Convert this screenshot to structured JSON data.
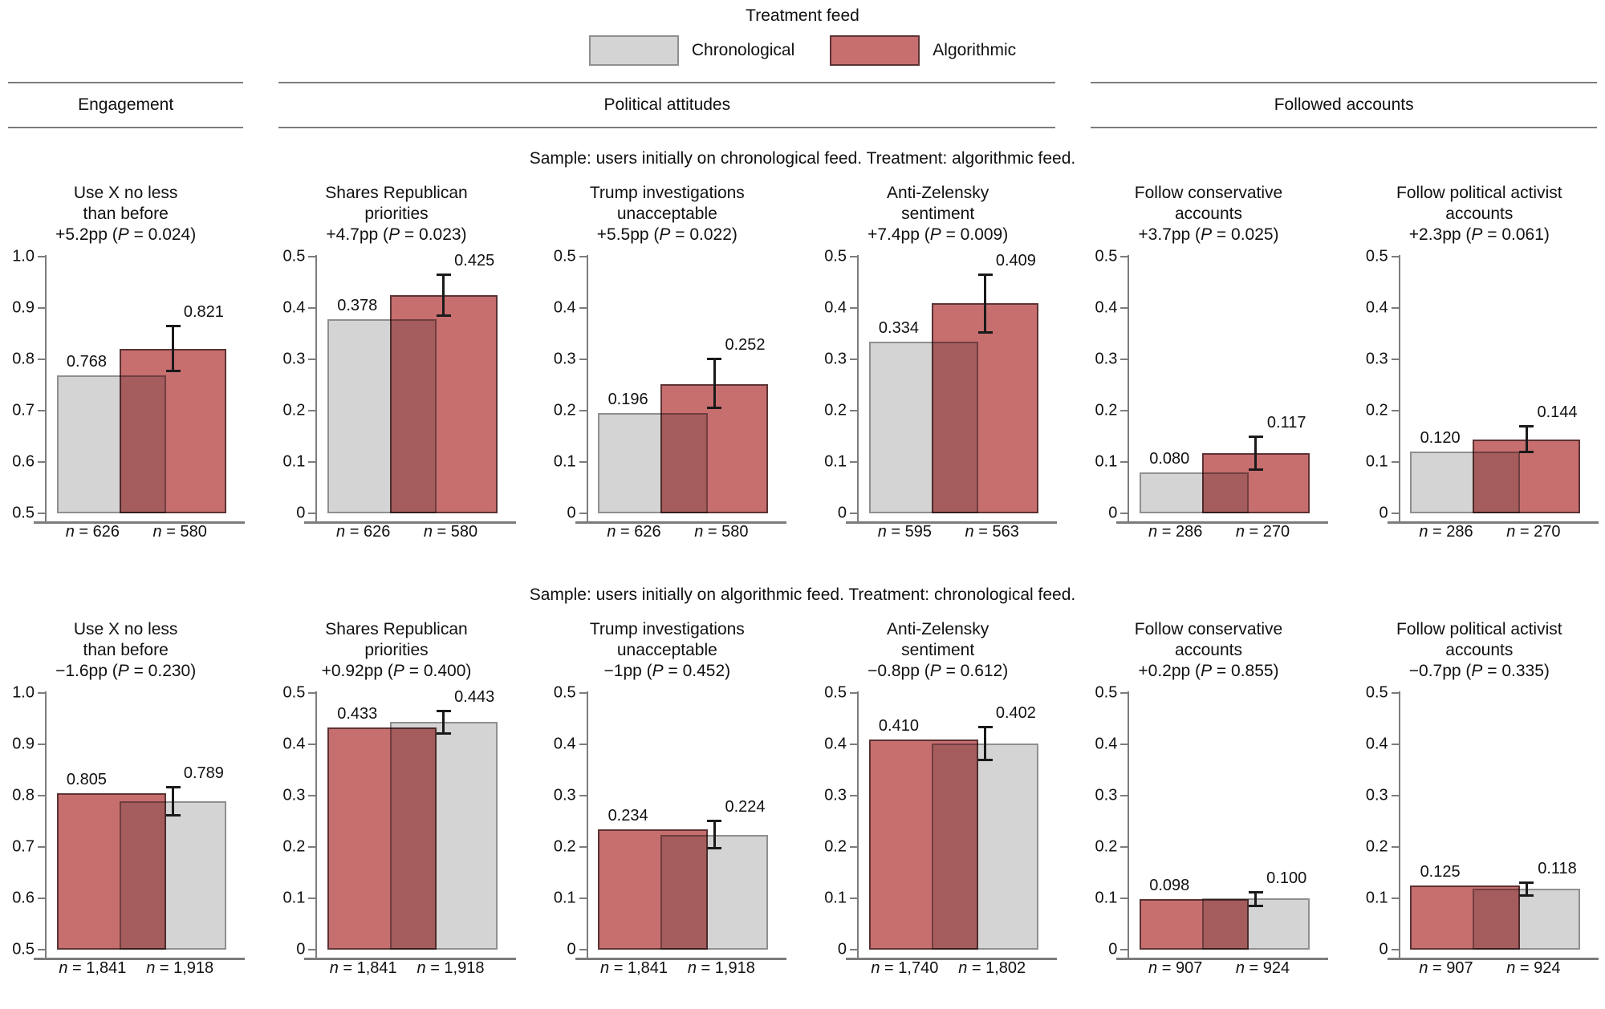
{
  "chart_data": {
    "type": "bar",
    "bar_style": "overlapping-pair-with-error-bar",
    "legend": {
      "title": "Treatment feed",
      "items": [
        {
          "label": "Chronological",
          "fill": "#d4d4d4",
          "border": "#8f8f8f"
        },
        {
          "label": "Algorithmic",
          "fill": "#c76e6f",
          "border": "#5c3334"
        }
      ]
    },
    "group_headers": [
      {
        "label": "Engagement"
      },
      {
        "label": "Political attitudes"
      },
      {
        "label": "Followed accounts"
      }
    ],
    "rows": [
      {
        "subtitle": "Sample: users initially on chronological feed. Treatment: algorithmic feed.",
        "charts": [
          {
            "title": [
              "Use X no less",
              "than before"
            ],
            "effect_label": "+5.2pp (P = 0.024)",
            "ylim": [
              0.5,
              1.0
            ],
            "yticks": [
              "0.5",
              "0.6",
              "0.7",
              "0.8",
              "0.9",
              "1.0"
            ],
            "bars": [
              {
                "series": "Chronological",
                "value": 0.768,
                "label": "0.768",
                "n": "n = 626"
              },
              {
                "series": "Algorithmic",
                "value": 0.821,
                "label": "0.821",
                "n": "n = 580",
                "ci": [
                  0.777,
                  0.866
                ]
              }
            ]
          },
          {
            "title": [
              "Shares Republican",
              "priorities"
            ],
            "effect_label": "+4.7pp (P = 0.023)",
            "ylim": [
              0,
              0.5
            ],
            "yticks": [
              "0",
              "0.1",
              "0.2",
              "0.3",
              "0.4",
              "0.5"
            ],
            "bars": [
              {
                "series": "Chronological",
                "value": 0.378,
                "label": "0.378",
                "n": "n = 626"
              },
              {
                "series": "Algorithmic",
                "value": 0.425,
                "label": "0.425",
                "n": "n = 580",
                "ci": [
                  0.385,
                  0.465
                ]
              }
            ]
          },
          {
            "title": [
              "Trump investigations",
              "unacceptable"
            ],
            "effect_label": "+5.5pp (P = 0.022)",
            "ylim": [
              0,
              0.5
            ],
            "yticks": [
              "0",
              "0.1",
              "0.2",
              "0.3",
              "0.4",
              "0.5"
            ],
            "bars": [
              {
                "series": "Chronological",
                "value": 0.196,
                "label": "0.196",
                "n": "n = 626"
              },
              {
                "series": "Algorithmic",
                "value": 0.252,
                "label": "0.252",
                "n": "n = 580",
                "ci": [
                  0.205,
                  0.301
                ]
              }
            ]
          },
          {
            "title": [
              "Anti-Zelensky",
              "sentiment"
            ],
            "effect_label": "+7.4pp (P = 0.009)",
            "ylim": [
              0,
              0.5
            ],
            "yticks": [
              "0",
              "0.1",
              "0.2",
              "0.3",
              "0.4",
              "0.5"
            ],
            "bars": [
              {
                "series": "Chronological",
                "value": 0.334,
                "label": "0.334",
                "n": "n = 595"
              },
              {
                "series": "Algorithmic",
                "value": 0.409,
                "label": "0.409",
                "n": "n = 563",
                "ci": [
                  0.352,
                  0.466
                ]
              }
            ]
          },
          {
            "title": [
              "Follow conservative",
              "accounts"
            ],
            "effect_label": "+3.7pp (P = 0.025)",
            "ylim": [
              0,
              0.5
            ],
            "yticks": [
              "0",
              "0.1",
              "0.2",
              "0.3",
              "0.4",
              "0.5"
            ],
            "bars": [
              {
                "series": "Chronological",
                "value": 0.08,
                "label": "0.080",
                "n": "n = 286"
              },
              {
                "series": "Algorithmic",
                "value": 0.117,
                "label": "0.117",
                "n": "n = 270",
                "ci": [
                  0.084,
                  0.15
                ]
              }
            ]
          },
          {
            "title": [
              "Follow political activist",
              "accounts"
            ],
            "effect_label": "+2.3pp (P = 0.061)",
            "ylim": [
              0,
              0.5
            ],
            "yticks": [
              "0",
              "0.1",
              "0.2",
              "0.3",
              "0.4",
              "0.5"
            ],
            "bars": [
              {
                "series": "Chronological",
                "value": 0.12,
                "label": "0.120",
                "n": "n = 286"
              },
              {
                "series": "Algorithmic",
                "value": 0.144,
                "label": "0.144",
                "n": "n = 270",
                "ci": [
                  0.118,
                  0.17
                ]
              }
            ]
          }
        ]
      },
      {
        "subtitle": "Sample: users initially on algorithmic feed. Treatment: chronological feed.",
        "charts": [
          {
            "title": [
              "Use X no less",
              "than before"
            ],
            "effect_label": "−1.6pp (P = 0.230)",
            "ylim": [
              0.5,
              1.0
            ],
            "yticks": [
              "0.5",
              "0.6",
              "0.7",
              "0.8",
              "0.9",
              "1.0"
            ],
            "bars": [
              {
                "series": "Algorithmic",
                "value": 0.805,
                "label": "0.805",
                "n": "n = 1,841"
              },
              {
                "series": "Chronological",
                "value": 0.789,
                "label": "0.789",
                "n": "n = 1,918",
                "ci": [
                  0.761,
                  0.817
                ]
              }
            ]
          },
          {
            "title": [
              "Shares Republican",
              "priorities"
            ],
            "effect_label": "+0.92pp (P = 0.400)",
            "ylim": [
              0,
              0.5
            ],
            "yticks": [
              "0",
              "0.1",
              "0.2",
              "0.3",
              "0.4",
              "0.5"
            ],
            "bars": [
              {
                "series": "Algorithmic",
                "value": 0.433,
                "label": "0.433",
                "n": "n = 1,841"
              },
              {
                "series": "Chronological",
                "value": 0.443,
                "label": "0.443",
                "n": "n = 1,918",
                "ci": [
                  0.42,
                  0.466
                ]
              }
            ]
          },
          {
            "title": [
              "Trump investigations",
              "unacceptable"
            ],
            "effect_label": "−1pp (P = 0.452)",
            "ylim": [
              0,
              0.5
            ],
            "yticks": [
              "0",
              "0.1",
              "0.2",
              "0.3",
              "0.4",
              "0.5"
            ],
            "bars": [
              {
                "series": "Algorithmic",
                "value": 0.234,
                "label": "0.234",
                "n": "n = 1,841"
              },
              {
                "series": "Chronological",
                "value": 0.224,
                "label": "0.224",
                "n": "n = 1,918",
                "ci": [
                  0.197,
                  0.251
                ]
              }
            ]
          },
          {
            "title": [
              "Anti-Zelensky",
              "sentiment"
            ],
            "effect_label": "−0.8pp (P = 0.612)",
            "ylim": [
              0,
              0.5
            ],
            "yticks": [
              "0",
              "0.1",
              "0.2",
              "0.3",
              "0.4",
              "0.5"
            ],
            "bars": [
              {
                "series": "Algorithmic",
                "value": 0.41,
                "label": "0.410",
                "n": "n = 1,740"
              },
              {
                "series": "Chronological",
                "value": 0.402,
                "label": "0.402",
                "n": "n = 1,802",
                "ci": [
                  0.369,
                  0.435
                ]
              }
            ]
          },
          {
            "title": [
              "Follow conservative",
              "accounts"
            ],
            "effect_label": "+0.2pp (P = 0.855)",
            "ylim": [
              0,
              0.5
            ],
            "yticks": [
              "0",
              "0.1",
              "0.2",
              "0.3",
              "0.4",
              "0.5"
            ],
            "bars": [
              {
                "series": "Algorithmic",
                "value": 0.098,
                "label": "0.098",
                "n": "n = 907"
              },
              {
                "series": "Chronological",
                "value": 0.1,
                "label": "0.100",
                "n": "n = 924",
                "ci": [
                  0.084,
                  0.113
                ]
              }
            ]
          },
          {
            "title": [
              "Follow political activist",
              "accounts"
            ],
            "effect_label": "−0.7pp (P = 0.335)",
            "ylim": [
              0,
              0.5
            ],
            "yticks": [
              "0",
              "0.1",
              "0.2",
              "0.3",
              "0.4",
              "0.5"
            ],
            "bars": [
              {
                "series": "Algorithmic",
                "value": 0.125,
                "label": "0.125",
                "n": "n = 907"
              },
              {
                "series": "Chronological",
                "value": 0.118,
                "label": "0.118",
                "n": "n = 924",
                "ci": [
                  0.104,
                  0.131
                ]
              }
            ]
          }
        ]
      }
    ]
  }
}
